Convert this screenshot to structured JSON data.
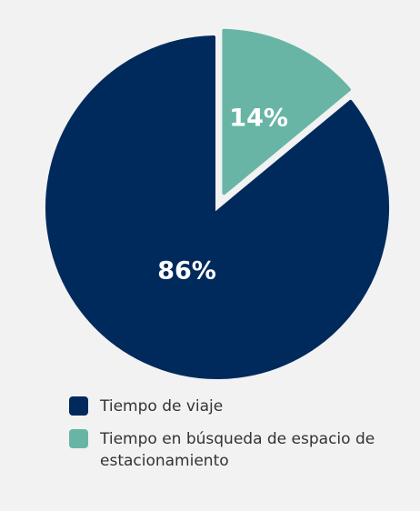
{
  "chart_data": {
    "type": "pie",
    "categories": [
      "Tiempo de viaje",
      "Tiempo en búsqueda de espacio de estacionamiento"
    ],
    "values": [
      86,
      14
    ],
    "data_labels": [
      "86%",
      "14%"
    ],
    "colors": [
      "#002a5c",
      "#68b5a6"
    ],
    "exploded": [
      false,
      true
    ],
    "legend_position": "bottom-left"
  }
}
